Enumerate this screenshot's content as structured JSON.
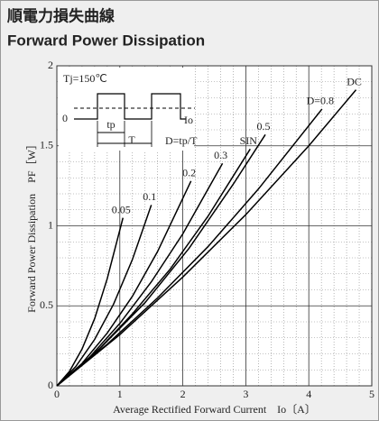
{
  "chart_data": {
    "type": "line",
    "title": "順電力損失曲線",
    "subtitle": "Forward Power Dissipation",
    "xlabel": "Average Rectified Forward Current　Io〔A〕",
    "ylabel": "Forward Power Dissipation　PF［W］",
    "annotations": {
      "tj": "Tj=150℃",
      "zero": "0",
      "tp": "tp",
      "period": "T",
      "duty": "D=tp/T",
      "io": "Io"
    },
    "xlim": [
      0,
      5
    ],
    "xticks": [
      0,
      1,
      2,
      3,
      4,
      5
    ],
    "ylim": [
      0,
      2
    ],
    "yticks": [
      0,
      0.5,
      1,
      1.5,
      2
    ],
    "grid": true,
    "series": [
      {
        "name": "0.05",
        "color": "#000000",
        "x": [
          0,
          0.2,
          0.4,
          0.6,
          0.8,
          1.05
        ],
        "values": [
          0,
          0.09,
          0.23,
          0.42,
          0.67,
          1.05
        ]
      },
      {
        "name": "0.1",
        "color": "#000000",
        "x": [
          0,
          0.3,
          0.6,
          0.9,
          1.2,
          1.5
        ],
        "values": [
          0,
          0.12,
          0.29,
          0.51,
          0.79,
          1.13
        ]
      },
      {
        "name": "0.2",
        "color": "#000000",
        "x": [
          0,
          0.4,
          0.8,
          1.2,
          1.6,
          2.13
        ],
        "values": [
          0,
          0.14,
          0.33,
          0.56,
          0.84,
          1.28
        ]
      },
      {
        "name": "0.3",
        "color": "#000000",
        "x": [
          0,
          0.5,
          1.0,
          1.5,
          2.0,
          2.63
        ],
        "values": [
          0,
          0.17,
          0.39,
          0.65,
          0.95,
          1.39
        ]
      },
      {
        "name": "SIN",
        "color": "#000000",
        "x": [
          0,
          0.6,
          1.2,
          1.8,
          2.4,
          3.07
        ],
        "values": [
          0,
          0.2,
          0.45,
          0.73,
          1.06,
          1.48
        ]
      },
      {
        "name": "0.5",
        "color": "#000000",
        "x": [
          0,
          0.7,
          1.4,
          2.1,
          2.8,
          3.31
        ],
        "values": [
          0,
          0.24,
          0.52,
          0.86,
          1.26,
          1.57
        ]
      },
      {
        "name": "D=0.8",
        "color": "#000000",
        "x": [
          0,
          0.8,
          1.6,
          2.4,
          3.2,
          4.21
        ],
        "values": [
          0,
          0.26,
          0.55,
          0.87,
          1.23,
          1.73
        ]
      },
      {
        "name": "DC",
        "color": "#000000",
        "x": [
          0,
          1,
          2,
          3,
          4,
          4.75
        ],
        "values": [
          0,
          0.32,
          0.68,
          1.07,
          1.5,
          1.85
        ]
      }
    ]
  }
}
